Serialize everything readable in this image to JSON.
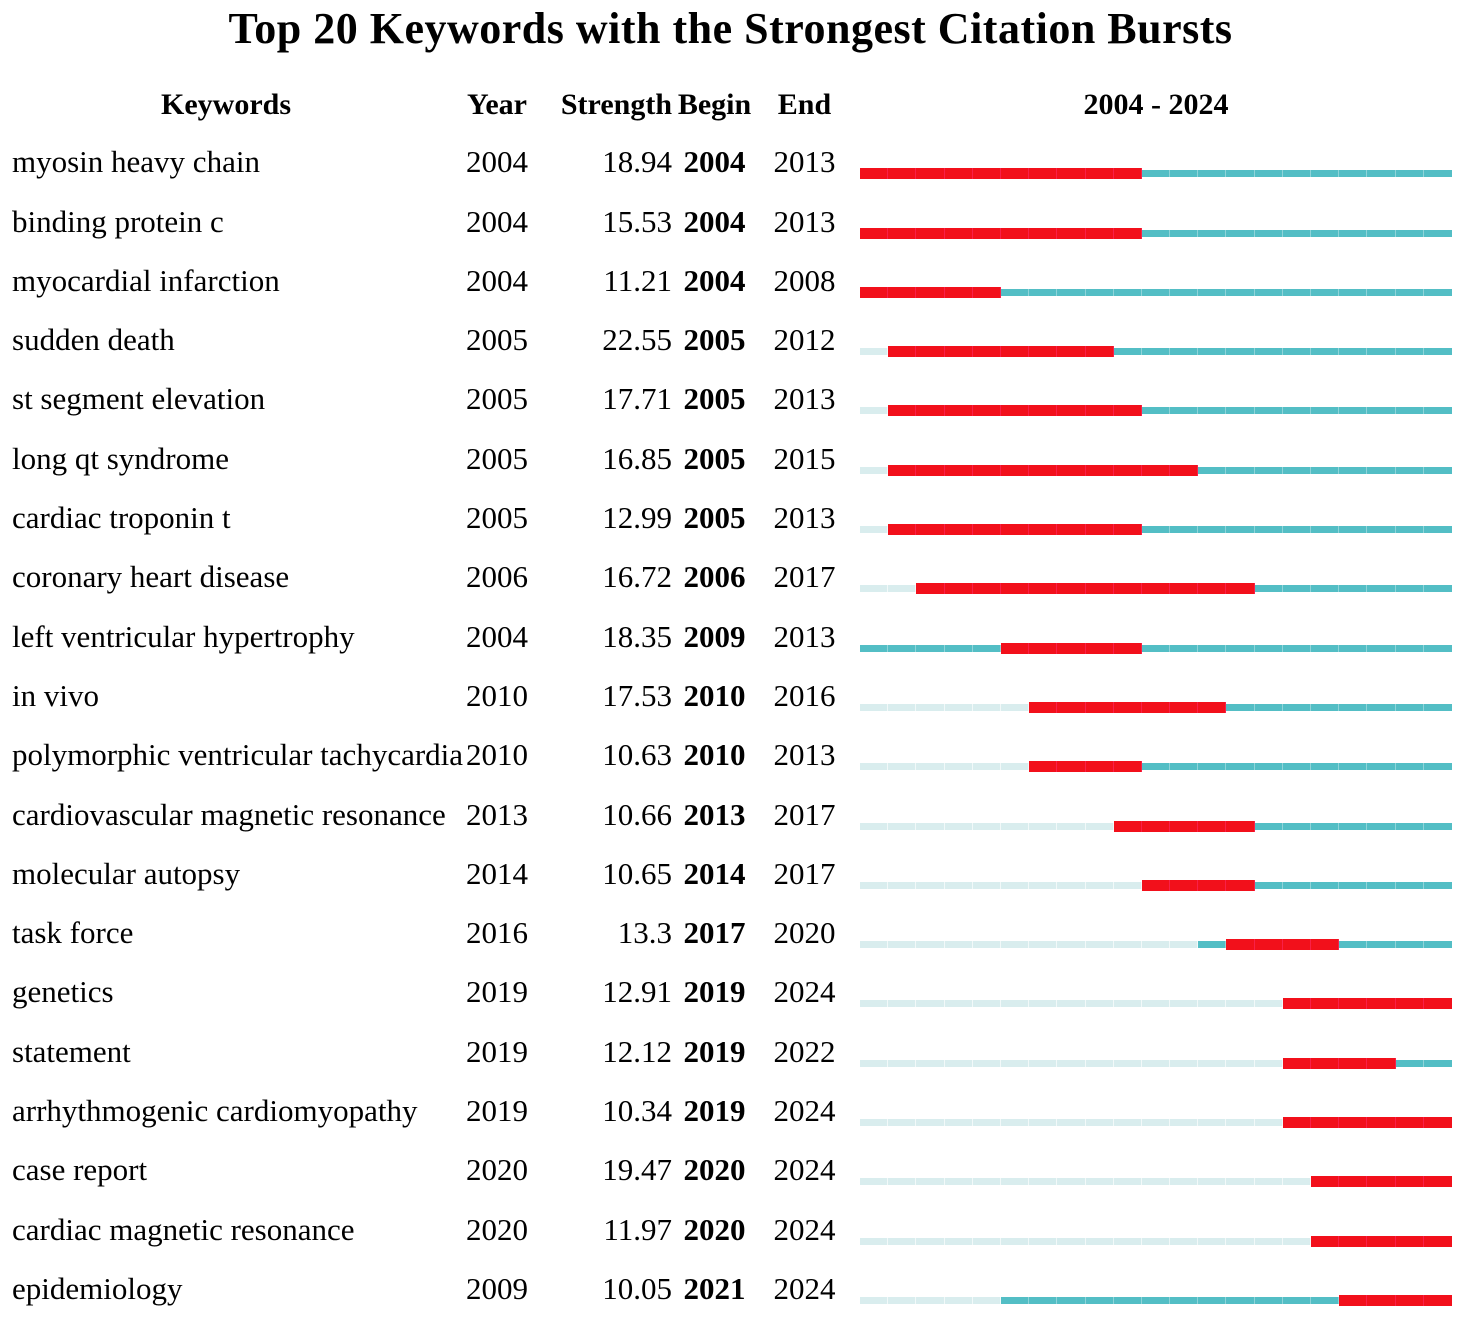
{
  "colors": {
    "burst_red": "#F2101B",
    "timeline_teal": "#53BEC5",
    "pre_appearance_pale": "#D9EDEE"
  },
  "chart_data": {
    "type": "table",
    "title": "Top 20 Keywords with the Strongest Citation Bursts",
    "columns": [
      "Keywords",
      "Year",
      "Strength",
      "Begin",
      "End",
      "2004 - 2024"
    ],
    "timeline_range": [
      2004,
      2024
    ],
    "legend_colors": {
      "red": "citation burst period (Begin to End)",
      "teal": "years keyword active outside burst",
      "pale": "years before keyword first appearance"
    },
    "rows": [
      {
        "keyword": "myosin heavy chain",
        "year": 2004,
        "strength": "18.94",
        "begin": 2004,
        "end": 2013
      },
      {
        "keyword": "binding protein c",
        "year": 2004,
        "strength": "15.53",
        "begin": 2004,
        "end": 2013
      },
      {
        "keyword": "myocardial infarction",
        "year": 2004,
        "strength": "11.21",
        "begin": 2004,
        "end": 2008
      },
      {
        "keyword": "sudden death",
        "year": 2005,
        "strength": "22.55",
        "begin": 2005,
        "end": 2012
      },
      {
        "keyword": "st segment elevation",
        "year": 2005,
        "strength": "17.71",
        "begin": 2005,
        "end": 2013
      },
      {
        "keyword": "long qt syndrome",
        "year": 2005,
        "strength": "16.85",
        "begin": 2005,
        "end": 2015
      },
      {
        "keyword": "cardiac troponin t",
        "year": 2005,
        "strength": "12.99",
        "begin": 2005,
        "end": 2013
      },
      {
        "keyword": "coronary heart disease",
        "year": 2006,
        "strength": "16.72",
        "begin": 2006,
        "end": 2017
      },
      {
        "keyword": "left ventricular hypertrophy",
        "year": 2004,
        "strength": "18.35",
        "begin": 2009,
        "end": 2013
      },
      {
        "keyword": "in vivo",
        "year": 2010,
        "strength": "17.53",
        "begin": 2010,
        "end": 2016
      },
      {
        "keyword": "polymorphic ventricular tachycardia",
        "year": 2010,
        "strength": "10.63",
        "begin": 2010,
        "end": 2013
      },
      {
        "keyword": "cardiovascular magnetic resonance",
        "year": 2013,
        "strength": "10.66",
        "begin": 2013,
        "end": 2017
      },
      {
        "keyword": "molecular autopsy",
        "year": 2014,
        "strength": "10.65",
        "begin": 2014,
        "end": 2017
      },
      {
        "keyword": "task force",
        "year": 2016,
        "strength": "13.3",
        "begin": 2017,
        "end": 2020
      },
      {
        "keyword": "genetics",
        "year": 2019,
        "strength": "12.91",
        "begin": 2019,
        "end": 2024
      },
      {
        "keyword": "statement",
        "year": 2019,
        "strength": "12.12",
        "begin": 2019,
        "end": 2022
      },
      {
        "keyword": "arrhythmogenic cardiomyopathy",
        "year": 2019,
        "strength": "10.34",
        "begin": 2019,
        "end": 2024
      },
      {
        "keyword": "case report",
        "year": 2020,
        "strength": "19.47",
        "begin": 2020,
        "end": 2024
      },
      {
        "keyword": "cardiac magnetic resonance",
        "year": 2020,
        "strength": "11.97",
        "begin": 2020,
        "end": 2024
      },
      {
        "keyword": "epidemiology",
        "year": 2009,
        "strength": "10.05",
        "begin": 2021,
        "end": 2024
      }
    ]
  }
}
